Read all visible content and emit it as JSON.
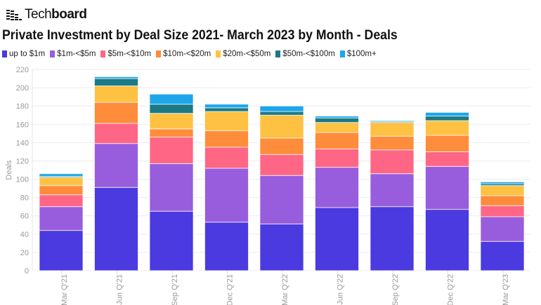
{
  "brand": {
    "logo_text_light": "Tech",
    "logo_text_bold": "board"
  },
  "chart_data": {
    "type": "bar",
    "stacked": true,
    "title": "Private Investment by Deal Size 2021- March 2023 by Month - Deals",
    "xlabel": "",
    "ylabel": "Deals",
    "ylim": [
      0,
      220
    ],
    "yticks": [
      0,
      20,
      40,
      60,
      80,
      100,
      120,
      140,
      160,
      180,
      200,
      220
    ],
    "grid": true,
    "legend_position": "top-left",
    "categories": [
      "Mar Q'21",
      "Jun Q'21",
      "Sep Q'21",
      "Dec Q'21",
      "Mar Q'22",
      "Jun Q'22",
      "Sep Q'22",
      "Dec Q'22",
      "Mar Q'23"
    ],
    "series": [
      {
        "name": "up to $1m",
        "color": "#4a3ae0",
        "values": [
          44,
          91,
          65,
          53,
          51,
          69,
          70,
          67,
          32
        ]
      },
      {
        "name": "$1m-<$5m",
        "color": "#985ddc",
        "values": [
          26,
          48,
          52,
          59,
          53,
          44,
          36,
          47,
          27
        ]
      },
      {
        "name": "$5m-<$10m",
        "color": "#ff6685",
        "values": [
          13,
          22,
          29,
          23,
          23,
          20,
          26,
          16,
          12
        ]
      },
      {
        "name": "$10m-<$20m",
        "color": "#ff8c3a",
        "values": [
          10,
          23,
          9,
          18,
          18,
          18,
          15,
          18,
          11
        ]
      },
      {
        "name": "$20m-<$50m",
        "color": "#ffc142",
        "values": [
          9,
          18,
          17,
          21,
          25,
          11,
          15,
          16,
          11
        ]
      },
      {
        "name": "$50m-<$100m",
        "color": "#1b7a86",
        "values": [
          1,
          8,
          10,
          4,
          4,
          5,
          1,
          5,
          2
        ]
      },
      {
        "name": "$100m+",
        "color": "#1fa6ea",
        "values": [
          3,
          2,
          11,
          4,
          6,
          2,
          1,
          4,
          2
        ]
      }
    ]
  }
}
